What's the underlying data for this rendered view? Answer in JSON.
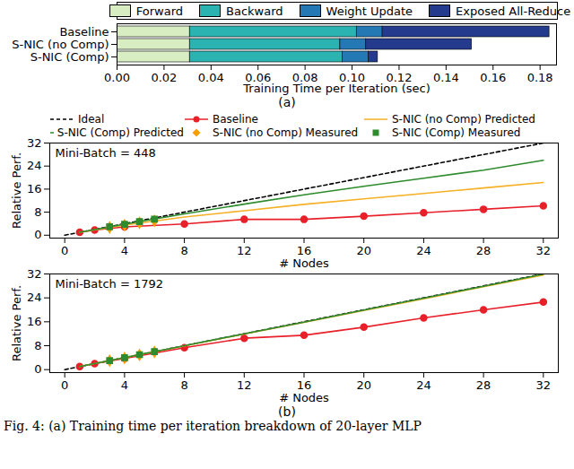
{
  "chart_data": [
    {
      "type": "bar",
      "orientation": "horizontal",
      "stacked": true,
      "legend": "top",
      "x_label": "Training Time per Iteration (sec)",
      "panel_label": "(a)",
      "categories": [
        "Baseline",
        "S-NIC (no Comp)",
        "S-NIC (Comp)"
      ],
      "series": [
        {
          "name": "Forward",
          "color": "#d9edc3",
          "values": [
            0.031,
            0.031,
            0.031
          ]
        },
        {
          "name": "Backward",
          "color": "#2bb3b1",
          "values": [
            0.071,
            0.064,
            0.065
          ]
        },
        {
          "name": "Weight Update",
          "color": "#2479b5",
          "values": [
            0.011,
            0.011,
            0.011
          ]
        },
        {
          "name": "Exposed All-Reduce",
          "color": "#243a8c",
          "values": [
            0.071,
            0.045,
            0.004
          ]
        }
      ],
      "xlim": [
        0,
        0.187
      ],
      "xticks": [
        {
          "value": 0,
          "label": "0.00"
        },
        0.02,
        0.04,
        0.06,
        0.08,
        {
          "value": 0.1,
          "label": "0.10"
        },
        0.12,
        0.14,
        0.16,
        0.18
      ]
    },
    {
      "type": "line",
      "legend": "top",
      "annotation": "Mini-Batch = 448",
      "x_label": "# Nodes",
      "y_label": "Relative Perf.",
      "xlim": [
        -1,
        33
      ],
      "xticks": [
        0,
        4,
        8,
        12,
        16,
        20,
        24,
        28,
        32
      ],
      "ylim": [
        -1,
        32
      ],
      "yticks": [
        0,
        8,
        16,
        24,
        32
      ],
      "series": [
        {
          "name": "Ideal",
          "type": "line",
          "color": "#000000",
          "line_style": "dashed",
          "x": [
            0,
            32
          ],
          "values": [
            0,
            32
          ]
        },
        {
          "name": "Baseline",
          "type": "line",
          "color": "#e8202a",
          "marker": "circle",
          "x": [
            1,
            2,
            4,
            8,
            12,
            16,
            20,
            24,
            28,
            32
          ],
          "values": [
            1,
            1.8,
            2.9,
            3.9,
            5.5,
            5.5,
            6.6,
            7.8,
            9,
            10.2
          ]
        },
        {
          "name": "S-NIC (no Comp) Predicted",
          "type": "line",
          "color": "#f5b025",
          "x": [
            1,
            4,
            8,
            12,
            16,
            20,
            24,
            28,
            32
          ],
          "values": [
            1,
            3.5,
            6.3,
            8.5,
            10.7,
            12.6,
            14.5,
            16.4,
            18.3
          ]
        },
        {
          "name": "S-NIC (Comp) Predicted",
          "type": "line",
          "color": "#2e8b2e",
          "x": [
            1,
            4,
            8,
            12,
            16,
            20,
            24,
            28,
            32
          ],
          "values": [
            1,
            3.8,
            7.4,
            10.8,
            14,
            17,
            19.8,
            22.6,
            26
          ]
        },
        {
          "name": "S-NIC (no Comp) Measured",
          "type": "scatter",
          "color": "#f5a000",
          "marker": "diamond",
          "x": [
            3,
            4,
            5,
            6
          ],
          "values": [
            2.7,
            3.5,
            4.3,
            5
          ]
        },
        {
          "name": "S-NIC (Comp) Measured",
          "type": "scatter",
          "color": "#2e8b2e",
          "marker": "square",
          "x": [
            3,
            4,
            5,
            6
          ],
          "values": [
            2.9,
            3.8,
            4.7,
            5.6
          ]
        }
      ]
    },
    {
      "type": "line",
      "annotation": "Mini-Batch = 1792",
      "x_label": "# Nodes",
      "y_label": "Relative Perf.",
      "panel_label": "(b)",
      "xlim": [
        -1,
        33
      ],
      "xticks": [
        0,
        4,
        8,
        12,
        16,
        20,
        24,
        28,
        32
      ],
      "ylim": [
        -1,
        32
      ],
      "yticks": [
        0,
        8,
        16,
        24,
        32
      ],
      "series": [
        {
          "name": "Ideal",
          "type": "line",
          "color": "#000000",
          "line_style": "dashed",
          "x": [
            0,
            32
          ],
          "values": [
            0,
            32
          ]
        },
        {
          "name": "Baseline",
          "type": "line",
          "color": "#e8202a",
          "marker": "circle",
          "x": [
            1,
            2,
            4,
            8,
            12,
            16,
            20,
            24,
            28,
            32
          ],
          "values": [
            1,
            2,
            3.7,
            7.3,
            10.5,
            11.5,
            14.2,
            17.3,
            20,
            22.6
          ]
        },
        {
          "name": "S-NIC (no Comp) Predicted",
          "type": "line",
          "color": "#f5b025",
          "x": [
            1,
            4,
            8,
            12,
            16,
            20,
            24,
            28,
            32
          ],
          "values": [
            1,
            4,
            7.9,
            11.9,
            15.8,
            19.8,
            23.7,
            27.7,
            31.6
          ]
        },
        {
          "name": "S-NIC (Comp) Predicted",
          "type": "line",
          "color": "#2e8b2e",
          "x": [
            1,
            4,
            8,
            12,
            16,
            20,
            24,
            28,
            32
          ],
          "values": [
            1,
            4,
            8,
            12,
            15.9,
            19.9,
            23.9,
            27.9,
            31.9
          ]
        },
        {
          "name": "S-NIC (no Comp) Measured",
          "type": "scatter",
          "color": "#f5a000",
          "marker": "diamond",
          "x": [
            3,
            4,
            5,
            6
          ],
          "values": [
            3,
            3.9,
            4.9,
            5.9
          ]
        },
        {
          "name": "S-NIC (Comp) Measured",
          "type": "scatter",
          "color": "#2e8b2e",
          "marker": "square",
          "x": [
            3,
            4,
            5,
            6
          ],
          "values": [
            3,
            4,
            5,
            6
          ]
        }
      ]
    }
  ],
  "caption": "Fig. 4: (a) Training time per iteration breakdown of 20-layer MLP"
}
